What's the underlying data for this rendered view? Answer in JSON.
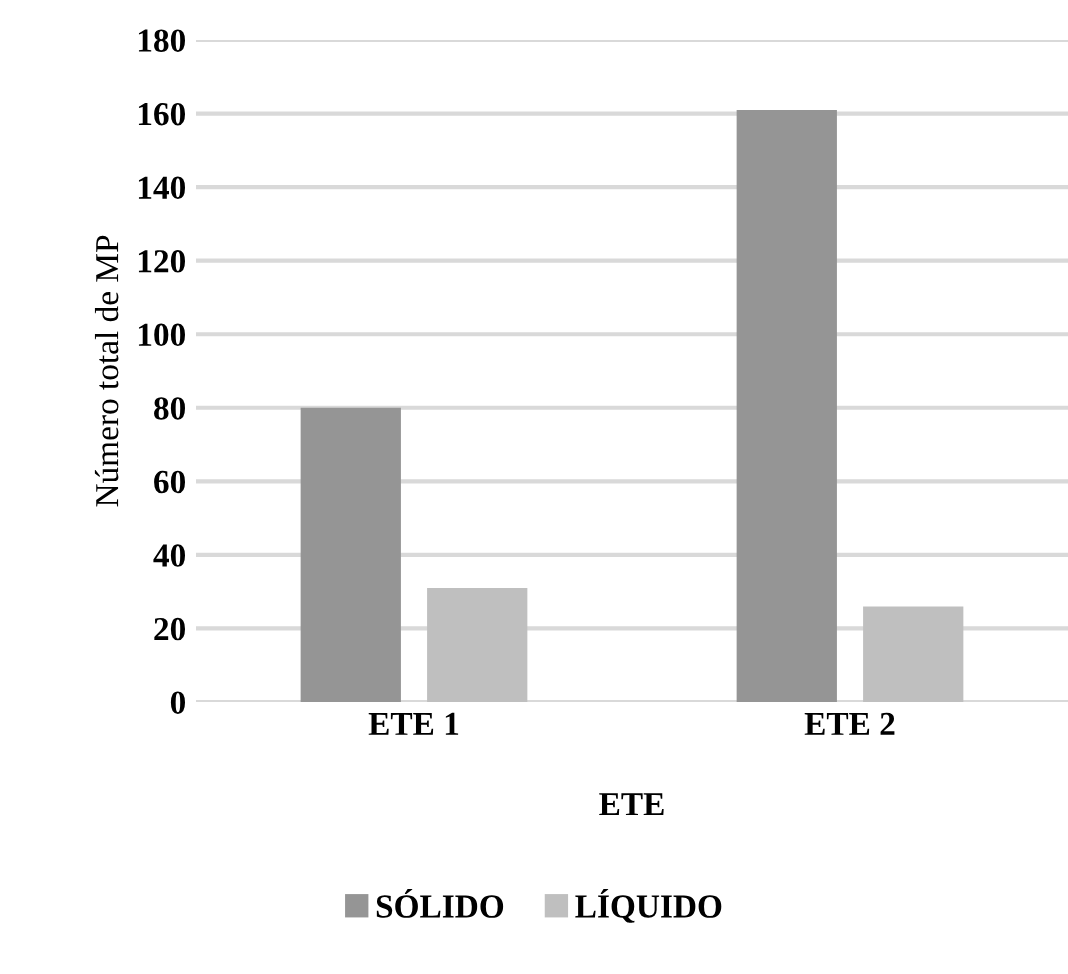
{
  "chart_data": {
    "type": "bar",
    "xlabel": "ETE",
    "ylabel": "Número total de MP",
    "categories": [
      "ETE 1",
      "ETE 2"
    ],
    "series": [
      {
        "name": "SÓLIDO",
        "color": "#959595",
        "values": [
          80,
          161
        ]
      },
      {
        "name": "LÍQUIDO",
        "color": "#bfbfbf",
        "values": [
          31,
          26
        ]
      }
    ],
    "ylim": [
      0,
      180
    ],
    "yticks": [
      0,
      20,
      40,
      60,
      80,
      100,
      120,
      140,
      160,
      180
    ],
    "grid": "y",
    "legend": "bottom"
  }
}
